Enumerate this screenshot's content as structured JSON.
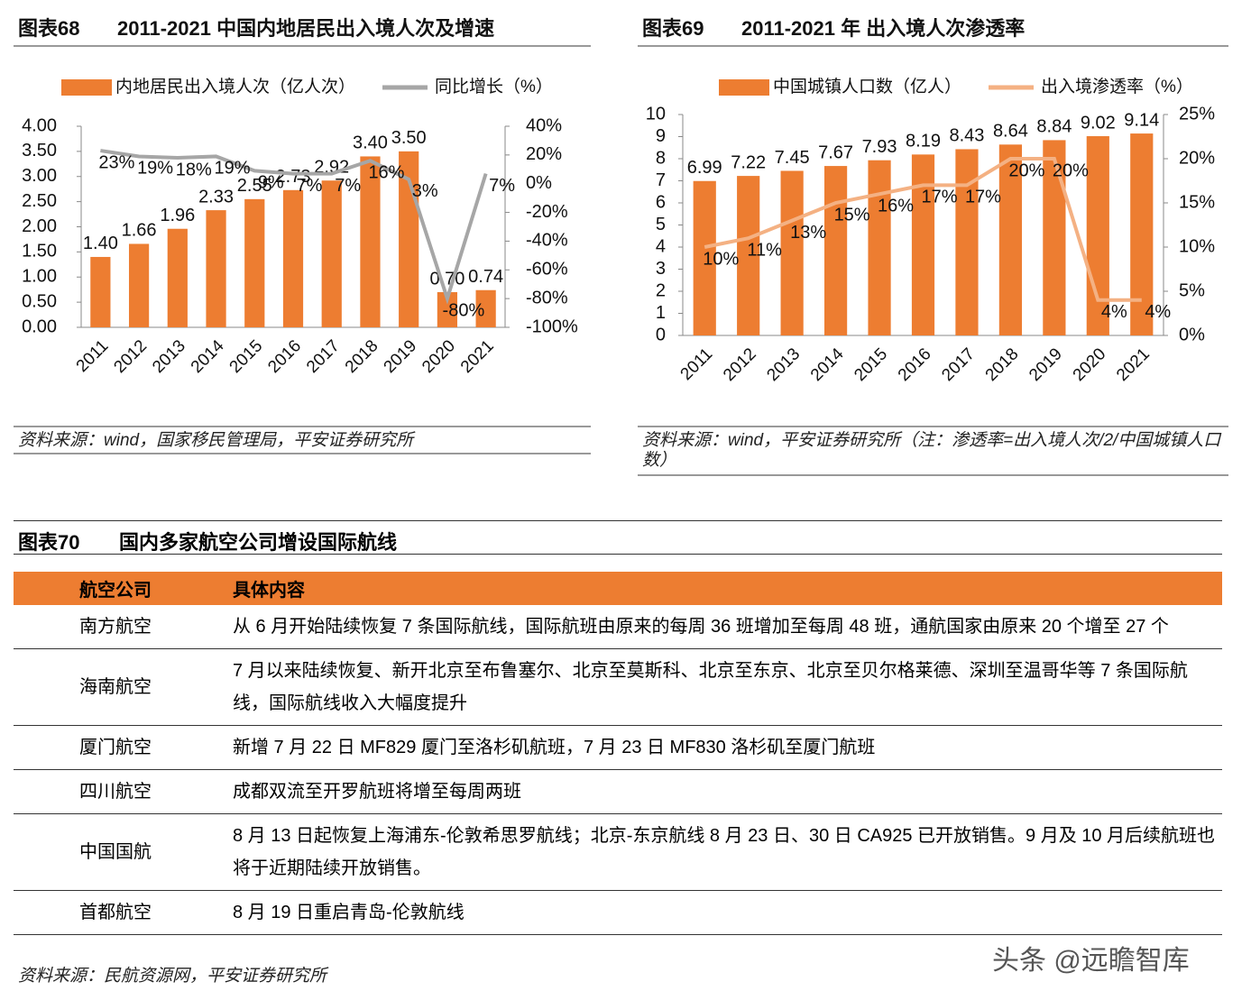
{
  "chart_data": [
    {
      "type": "bar",
      "label": "图表68",
      "title": "2011-2021 中国内地居民出入境人次及增速",
      "categories": [
        "2011",
        "2012",
        "2013",
        "2014",
        "2015",
        "2016",
        "2017",
        "2018",
        "2019",
        "2020",
        "2021"
      ],
      "series": [
        {
          "name": "内地居民出入境人次（亿人次）",
          "color": "#ed7d31",
          "values": [
            1.4,
            1.66,
            1.96,
            2.33,
            2.55,
            2.73,
            2.92,
            3.4,
            3.5,
            0.7,
            0.74
          ],
          "value_labels": [
            "1.40",
            "1.66",
            "1.96",
            "2.33",
            "2.55",
            "2.73",
            "2.92",
            "3.40",
            "3.50",
            "0.70",
            "0.74"
          ]
        },
        {
          "name": "同比增长（%）",
          "type": "line",
          "axis": "y2",
          "color": "#a6a6a6",
          "values": [
            23,
            19,
            18,
            19,
            9,
            7,
            7,
            16,
            3,
            -80,
            7
          ],
          "value_labels": [
            "23%",
            "19%",
            "18%",
            "19%",
            "9%",
            "7%",
            "7%",
            "16%",
            "3%",
            "-80%",
            "7%"
          ]
        }
      ],
      "ylim": [
        0,
        4
      ],
      "yticks": [
        {
          "value": 0,
          "label": "0.00"
        },
        {
          "value": 0.5,
          "label": "0.50"
        },
        {
          "value": 1,
          "label": "1.00"
        },
        {
          "value": 1.5,
          "label": "1.50"
        },
        {
          "value": 2,
          "label": "2.00"
        },
        {
          "value": 2.5,
          "label": "2.50"
        },
        {
          "value": 3,
          "label": "3.00"
        },
        {
          "value": 3.5,
          "label": "3.50"
        },
        {
          "value": 4,
          "label": "4.00"
        }
      ],
      "y2lim": [
        -100,
        40
      ],
      "y2ticks": [
        {
          "value": -100,
          "label": "-100%"
        },
        {
          "value": -80,
          "label": "-80%"
        },
        {
          "value": -60,
          "label": "-60%"
        },
        {
          "value": -40,
          "label": "-40%"
        },
        {
          "value": -20,
          "label": "-20%"
        },
        {
          "value": 0,
          "label": "0%"
        },
        {
          "value": 20,
          "label": "20%"
        },
        {
          "value": 40,
          "label": "40%"
        }
      ],
      "source": "资料来源：wind，国家移民管理局，平安证券研究所"
    },
    {
      "type": "bar",
      "label": "图表69",
      "title": "2011-2021 年 出入境人次渗透率",
      "categories": [
        "2011",
        "2012",
        "2013",
        "2014",
        "2015",
        "2016",
        "2017",
        "2018",
        "2019",
        "2020",
        "2021"
      ],
      "series": [
        {
          "name": "中国城镇人口数（亿人）",
          "color": "#ed7d31",
          "values": [
            6.99,
            7.22,
            7.45,
            7.67,
            7.93,
            8.19,
            8.43,
            8.64,
            8.84,
            9.02,
            9.14
          ]
        },
        {
          "name": "出入境渗透率（%）",
          "type": "line",
          "axis": "y2",
          "color": "#f4b183",
          "values": [
            10,
            11,
            13,
            15,
            16,
            17,
            17,
            20,
            20,
            4,
            4
          ],
          "value_labels": [
            "10%",
            "11%",
            "13%",
            "15%",
            "16%",
            "17%",
            "17%",
            "20%",
            "20%",
            "4%",
            "4%"
          ]
        }
      ],
      "ylim": [
        0,
        10
      ],
      "yticks": [
        0,
        1,
        2,
        3,
        4,
        5,
        6,
        7,
        8,
        9,
        10
      ],
      "y2lim": [
        0,
        25
      ],
      "y2ticks": [
        {
          "value": 0,
          "label": "0%"
        },
        {
          "value": 5,
          "label": "5%"
        },
        {
          "value": 10,
          "label": "10%"
        },
        {
          "value": 15,
          "label": "15%"
        },
        {
          "value": 20,
          "label": "20%"
        },
        {
          "value": 25,
          "label": "25%"
        }
      ],
      "source": "资料来源：wind，平安证券研究所（注：渗透率=出入境人次/2/中国城镇人口数）"
    }
  ],
  "table": {
    "label": "图表70",
    "title": "国内多家航空公司增设国际航线",
    "header": [
      "航空公司",
      "具体内容"
    ],
    "rows": [
      [
        "南方航空",
        "从 6 月开始陆续恢复 7 条国际航线，国际航班由原来的每周 36 班增加至每周 48 班，通航国家由原来 20 个增至 27 个"
      ],
      [
        "海南航空",
        "7 月以来陆续恢复、新开北京至布鲁塞尔、北京至莫斯科、北京至东京、北京至贝尔格莱德、深圳至温哥华等 7 条国际航线，国际航线收入大幅度提升"
      ],
      [
        "厦门航空",
        "新增 7 月 22 日 MF829 厦门至洛杉矶航班，7 月 23 日 MF830 洛杉矶至厦门航班"
      ],
      [
        "四川航空",
        "成都双流至开罗航班将增至每周两班"
      ],
      [
        "中国国航",
        "8 月 13 日起恢复上海浦东-伦敦希思罗航线；北京-东京航线 8 月 23 日、30 日 CA925 已开放销售。9 月及 10 月后续航班也将于近期陆续开放销售。"
      ],
      [
        "首都航空",
        "8 月 19 日重启青岛-伦敦航线"
      ]
    ],
    "source": "资料来源：民航资源网，平安证券研究所"
  },
  "watermark": "头条 @远瞻智库"
}
